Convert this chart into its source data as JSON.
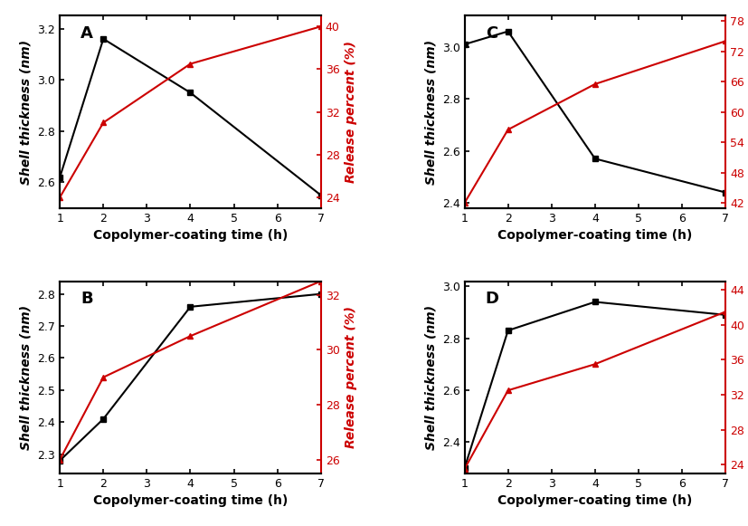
{
  "x": [
    1,
    2,
    4,
    7
  ],
  "A": {
    "label": "A",
    "black_y": [
      2.62,
      3.16,
      2.95,
      2.55
    ],
    "red_y": [
      24.0,
      31.0,
      36.5,
      40.0
    ],
    "black_ylim": [
      2.5,
      3.25
    ],
    "black_yticks": [
      2.6,
      2.8,
      3.0,
      3.2
    ],
    "red_ylim": [
      23,
      41
    ],
    "red_yticks": [
      24,
      28,
      32,
      36,
      40
    ]
  },
  "B": {
    "label": "B",
    "black_y": [
      2.28,
      2.41,
      2.76,
      2.8
    ],
    "red_y": [
      26.0,
      29.0,
      30.5,
      32.5
    ],
    "black_ylim": [
      2.24,
      2.84
    ],
    "black_yticks": [
      2.3,
      2.4,
      2.5,
      2.6,
      2.7,
      2.8
    ],
    "red_ylim": [
      25.5,
      32.5
    ],
    "red_yticks": [
      26,
      28,
      30,
      32
    ]
  },
  "C": {
    "label": "C",
    "black_y": [
      3.01,
      3.06,
      2.57,
      2.44
    ],
    "red_y": [
      42.0,
      56.5,
      65.5,
      74.0
    ],
    "black_ylim": [
      2.38,
      3.12
    ],
    "black_yticks": [
      2.4,
      2.6,
      2.8,
      3.0
    ],
    "red_ylim": [
      41,
      79
    ],
    "red_yticks": [
      42,
      48,
      54,
      60,
      66,
      72,
      78
    ]
  },
  "D": {
    "label": "D",
    "black_y": [
      2.3,
      2.83,
      2.94,
      2.89
    ],
    "red_y": [
      23.5,
      32.5,
      35.5,
      41.5
    ],
    "black_ylim": [
      2.28,
      3.02
    ],
    "black_yticks": [
      2.4,
      2.6,
      2.8,
      3.0
    ],
    "red_ylim": [
      23,
      45
    ],
    "red_yticks": [
      24,
      28,
      32,
      36,
      40,
      44
    ]
  },
  "black_color": "#000000",
  "red_color": "#cc0000",
  "xlabel": "Copolymer-coating time (h)",
  "ylabel_left": "Shell thickness (nm)",
  "ylabel_right": "Release percent (%)",
  "xticks": [
    1,
    2,
    3,
    4,
    5,
    6,
    7
  ],
  "marker_black": "s",
  "marker_red": "^",
  "linewidth": 1.5,
  "markersize": 5,
  "label_fontsize": 10,
  "tick_fontsize": 9,
  "panel_label_fontsize": 13
}
